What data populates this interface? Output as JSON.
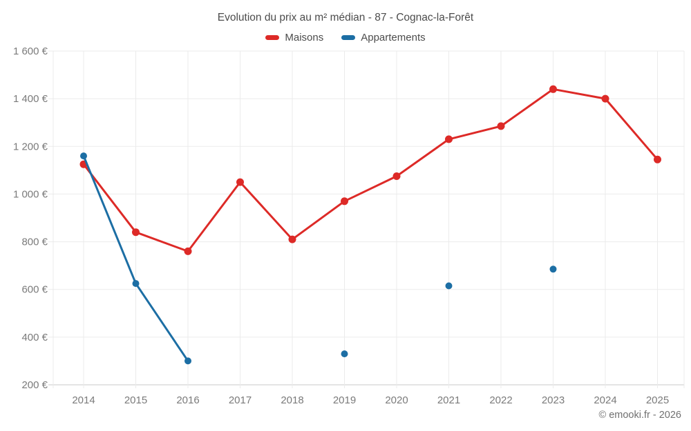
{
  "page": {
    "background": "#ffffff"
  },
  "footer": {
    "credit": "© emooki.fr - 2026"
  },
  "chart_data": {
    "type": "line",
    "title": "Evolution du prix au m² médian - 87 - Cognac-la-Forêt",
    "x": [
      2014,
      2015,
      2016,
      2017,
      2018,
      2019,
      2020,
      2021,
      2022,
      2023,
      2024,
      2025
    ],
    "series": [
      {
        "name": "Maisons",
        "color": "#dd2a27",
        "line_width": 3,
        "point_radius": 5.5,
        "values": [
          1125,
          840,
          760,
          1050,
          810,
          970,
          1075,
          1230,
          1285,
          1440,
          1400,
          1145
        ]
      },
      {
        "name": "Appartements",
        "color": "#1c6ea4",
        "line_width": 3,
        "point_radius": 5,
        "values": [
          1160,
          625,
          300,
          null,
          null,
          330,
          null,
          615,
          null,
          685,
          null,
          null
        ]
      }
    ],
    "ylim": [
      200,
      1600
    ],
    "ytick_step": 200,
    "yticks": [
      {
        "value": 200,
        "label": "200 €"
      },
      {
        "value": 400,
        "label": "400 €"
      },
      {
        "value": 600,
        "label": "600 €"
      },
      {
        "value": 800,
        "label": "800 €"
      },
      {
        "value": 1000,
        "label": "1 000 €"
      },
      {
        "value": 1200,
        "label": "1 200 €"
      },
      {
        "value": 1400,
        "label": "1 400 €"
      },
      {
        "value": 1600,
        "label": "1 600 €"
      }
    ],
    "grid": true,
    "legend_position": "top",
    "colors": {
      "grid": "#ebebeb",
      "axis": "#c8c8c8",
      "tick_label": "#7a7a7a",
      "title": "#4c4c4c",
      "footer": "#707070"
    }
  }
}
